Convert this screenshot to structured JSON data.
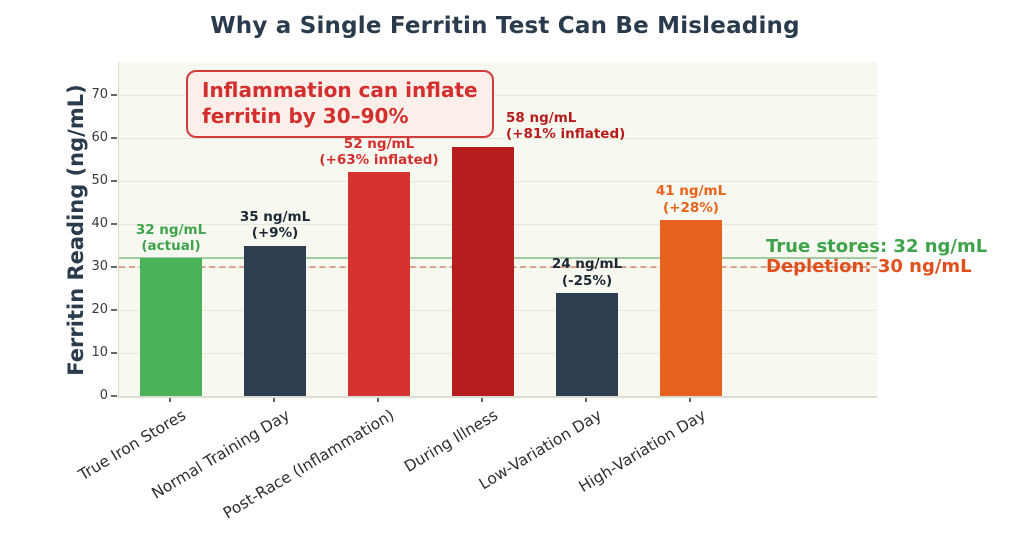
{
  "annotation_box": {
    "line1": "Inflammation can inflate",
    "line2": "ferritin by 30–90%"
  },
  "chart_data": {
    "type": "bar",
    "title": "Why a Single Ferritin Test Can Be Misleading",
    "ylabel": "Ferritin Reading (ng/mL)",
    "categories": [
      "True Iron Stores",
      "Normal Training Day",
      "Post-Race (Inflammation)",
      "During Illness",
      "Low-Variation Day",
      "High-Variation Day"
    ],
    "values": [
      32,
      35,
      52,
      58,
      24,
      41
    ],
    "bar_colors": [
      "#4ab357",
      "#2c3e50",
      "#d63330",
      "#b71d1f",
      "#2c3e50",
      "#e5631f"
    ],
    "bar_labels": [
      {
        "line1": "32 ng/mL",
        "line2": "(actual)",
        "color": "#3fa34c",
        "align": "center",
        "dx": 0
      },
      {
        "line1": "35 ng/mL",
        "line2": "(+9%)",
        "color": "#1c2833",
        "align": "center",
        "dx": 0
      },
      {
        "line1": "52 ng/mL",
        "line2": "(+63% inflated)",
        "color": "#d32f2f",
        "align": "center",
        "dx": 0
      },
      {
        "line1": "58 ng/mL",
        "line2": "(+81% inflated)",
        "color": "#b71c1c",
        "align": "left",
        "dx": 23
      },
      {
        "line1": "24 ng/mL",
        "line2": "(-25%)",
        "color": "#1c2833",
        "align": "center",
        "dx": 0
      },
      {
        "line1": "41 ng/mL",
        "line2": "(+28%)",
        "color": "#e8631c",
        "align": "center",
        "dx": 0
      }
    ],
    "yticks": [
      0,
      10,
      20,
      30,
      40,
      50,
      60,
      70
    ],
    "ylim": [
      0,
      77.7
    ],
    "grid": true,
    "legend_position": "none",
    "reference_lines": [
      {
        "value": 32,
        "style": "solid",
        "line_color": "rgba(91,166,97,0.55)",
        "label": "True stores: 32 ng/mL",
        "label_color": "#3fa34c"
      },
      {
        "value": 30,
        "style": "dashed",
        "line_color": "rgba(195,85,55,0.5)",
        "label": "Depletion: 30 ng/mL",
        "label_color": "#e0501e"
      }
    ]
  }
}
